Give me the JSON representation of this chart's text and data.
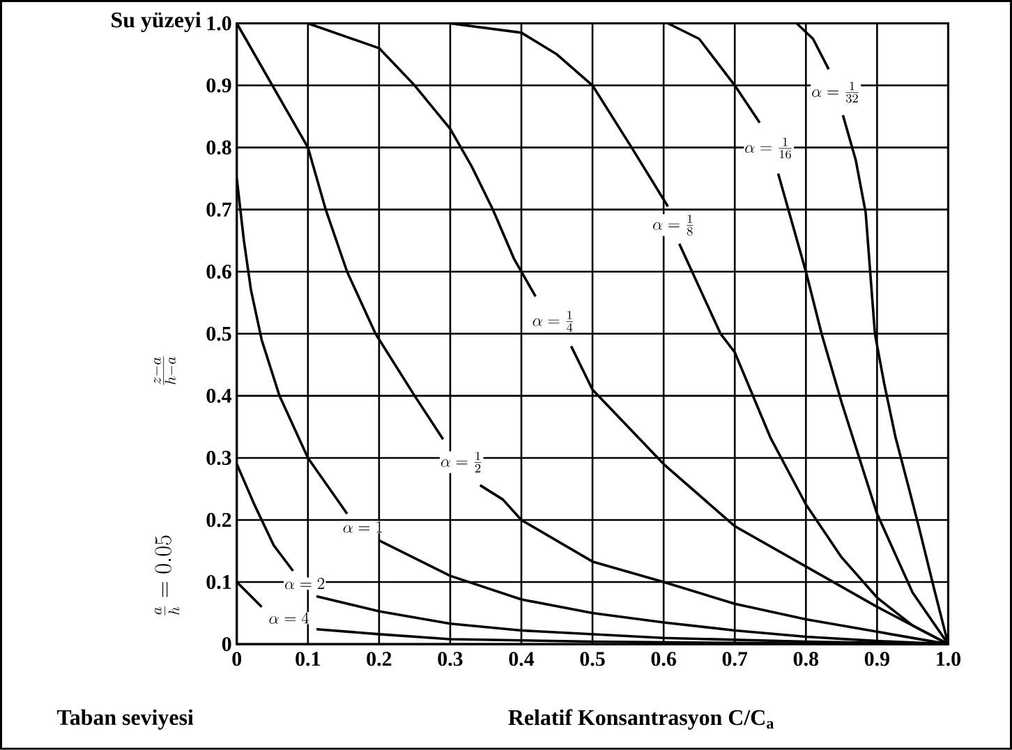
{
  "chart_data": {
    "type": "line",
    "xlabel": "Relatif Konsantrasyon  C/C$_{a}$",
    "ylabel": "\\frac{z - a}{h - a}",
    "annotations": [
      "Su yüzeyi",
      "\\frac{a}{h} = 0.05",
      "Taban seviyesi"
    ],
    "xlim": [
      0,
      1
    ],
    "ylim": [
      0,
      1
    ],
    "xticks": [
      0,
      0.1,
      0.2,
      0.3,
      0.4,
      0.5,
      0.6,
      0.7,
      0.8,
      0.9,
      {
        "value": 1,
        "label": "1.0"
      }
    ],
    "yticks": [
      0,
      0.1,
      0.2,
      0.3,
      0.4,
      0.5,
      0.6,
      0.7,
      0.8,
      0.9,
      {
        "value": 1,
        "label": "1.0"
      }
    ],
    "grid": true,
    "series": [
      {
        "name": "\\alpha = \\frac{1}{32}",
        "color": "#000000",
        "x": [
          0.787,
          0.81,
          0.832,
          null,
          0.852,
          0.87,
          0.884,
          0.897,
          0.91,
          0.926,
          0.945,
          0.96,
          0.98,
          1.0
        ],
        "values": [
          1.0,
          0.975,
          0.926,
          null,
          0.852,
          0.78,
          0.695,
          0.5,
          0.42,
          0.333,
          0.25,
          0.183,
          0.09,
          0
        ]
      },
      {
        "name": "\\alpha = \\frac{1}{16}",
        "color": "#000000",
        "x": [
          0.606,
          0.65,
          0.7,
          0.735,
          null,
          0.761,
          0.8,
          0.822,
          0.85,
          0.9,
          0.95,
          1.0
        ],
        "values": [
          1.0,
          0.975,
          0.9,
          0.84,
          null,
          0.758,
          0.6,
          0.5,
          0.39,
          0.21,
          0.083,
          0
        ]
      },
      {
        "name": "\\alpha = \\frac{1}{8}",
        "color": "#000000",
        "x": [
          0.3,
          0.4,
          0.45,
          0.5,
          0.555,
          0.606,
          null,
          0.622,
          0.68,
          0.7,
          0.75,
          0.8,
          0.85,
          0.9,
          0.95,
          1.0
        ],
        "values": [
          1.0,
          0.985,
          0.95,
          0.9,
          0.8,
          0.705,
          null,
          0.645,
          0.5,
          0.47,
          0.333,
          0.225,
          0.14,
          0.075,
          0.03,
          0
        ]
      },
      {
        "name": "\\alpha = \\frac{1}{4}",
        "color": "#000000",
        "x": [
          0.1,
          0.2,
          0.25,
          0.3,
          0.33,
          0.36,
          0.39,
          0.42,
          null,
          0.47,
          0.5,
          0.6,
          0.7,
          0.8,
          0.9,
          1.0
        ],
        "values": [
          1.0,
          0.96,
          0.9,
          0.83,
          0.77,
          0.7,
          0.62,
          0.56,
          null,
          0.48,
          0.41,
          0.29,
          0.19,
          0.125,
          0.06,
          0
        ]
      },
      {
        "name": "\\alpha = \\frac{1}{2}",
        "color": "#000000",
        "x": [
          0,
          0.05,
          0.1,
          0.125,
          0.155,
          0.195,
          0.25,
          0.29,
          null,
          0.342,
          0.374,
          0.4,
          0.5,
          0.6,
          0.7,
          0.8,
          0.9,
          1.0
        ],
        "values": [
          1.0,
          0.9,
          0.8,
          0.7,
          0.6,
          0.5,
          0.4,
          0.33,
          null,
          0.256,
          0.233,
          0.2,
          0.133,
          0.1,
          0.065,
          0.04,
          0.02,
          0
        ]
      },
      {
        "name": "\\alpha = 1",
        "color": "#000000",
        "x": [
          0,
          0.01,
          0.02,
          0.035,
          0.06,
          0.1,
          0.155,
          null,
          0.2,
          0.3,
          0.4,
          0.5,
          0.6,
          0.7,
          0.8,
          0.9,
          1.0
        ],
        "values": [
          0.75,
          0.65,
          0.57,
          0.49,
          0.4,
          0.3,
          0.21,
          null,
          0.167,
          0.11,
          0.072,
          0.05,
          0.035,
          0.022,
          0.012,
          0.005,
          0
        ]
      },
      {
        "name": "\\alpha = 2",
        "color": "#000000",
        "x": [
          0,
          0.025,
          0.052,
          0.079,
          null,
          0.112,
          0.2,
          0.3,
          0.4,
          0.6,
          0.8,
          1.0
        ],
        "values": [
          0.29,
          0.224,
          0.159,
          0.118,
          null,
          0.077,
          0.053,
          0.033,
          0.022,
          0.01,
          0.004,
          0
        ]
      },
      {
        "name": "\\alpha = 4",
        "color": "#000000",
        "x": [
          0,
          0.035,
          null,
          0.112,
          0.2,
          0.3,
          0.5,
          0.8,
          1.0
        ],
        "values": [
          0.1,
          0.06,
          null,
          0.024,
          0.016,
          0.008,
          0.004,
          0.001,
          0
        ]
      }
    ]
  }
}
